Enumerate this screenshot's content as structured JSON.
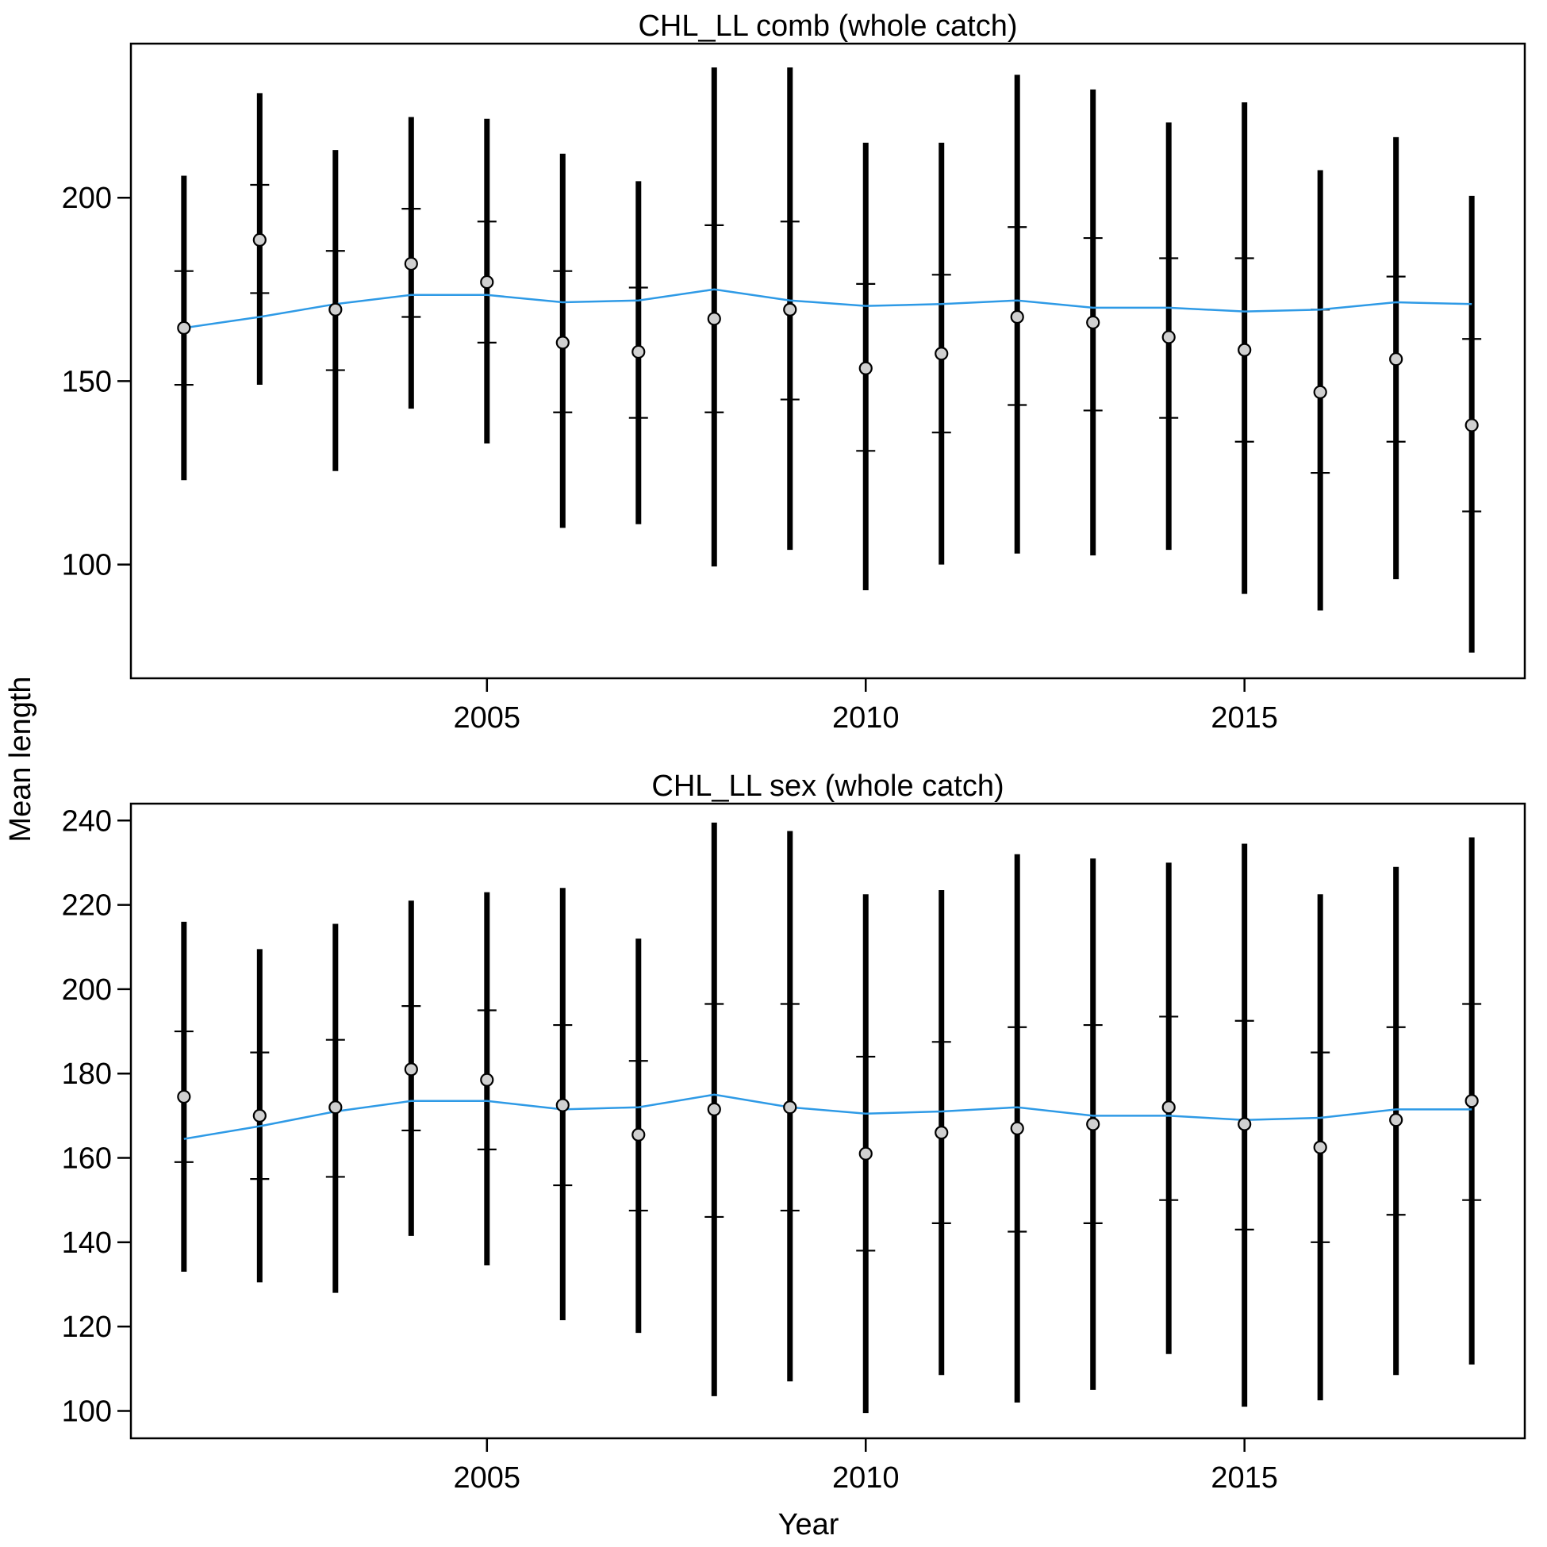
{
  "figure": {
    "xlabel": "Year",
    "ylabel": "Mean length"
  },
  "chart_data": [
    {
      "type": "scatter",
      "title": "CHL_LL comb (whole catch)",
      "xlabel": "Year",
      "ylabel": "Mean length",
      "xlim": [
        2000.3,
        2018.7
      ],
      "ylim": [
        69,
        242
      ],
      "xticks": [
        2005,
        2010,
        2015
      ],
      "yticks": [
        100,
        150,
        200
      ],
      "grid": false,
      "colors": {
        "line": "#2E9AE6",
        "point_fill": "#D0D0D0",
        "bar": "#000000"
      },
      "series": [
        {
          "x": [
            2001,
            2002,
            2003,
            2004,
            2005,
            2006,
            2007,
            2008,
            2009,
            2010,
            2011,
            2012,
            2013,
            2014,
            2015,
            2016,
            2017,
            2018
          ],
          "observed": [
            164.5,
            188.5,
            169.5,
            182,
            177,
            160.5,
            158,
            167,
            169.5,
            153.5,
            157.5,
            167.5,
            166,
            162,
            158.5,
            147,
            156,
            138
          ],
          "inner_lower": [
            149,
            174,
            153,
            167.5,
            160.5,
            141.5,
            140,
            141.5,
            145,
            131,
            136,
            143.5,
            142,
            140,
            133.5,
            125,
            133.5,
            114.5
          ],
          "inner_upper": [
            180,
            203.5,
            185.5,
            197,
            193.5,
            180,
            175.5,
            192.5,
            193.5,
            176.5,
            179,
            192,
            189,
            183.5,
            183.5,
            169.5,
            178.5,
            161.5
          ],
          "outer_lower": [
            123,
            149,
            125.5,
            142.5,
            133,
            110,
            111,
            99.5,
            104,
            93,
            100,
            103,
            102.5,
            104,
            92,
            87.5,
            96,
            76
          ],
          "outer_upper": [
            206,
            228.5,
            213,
            222,
            221.5,
            212,
            204.5,
            235.5,
            235.5,
            215,
            215,
            233.5,
            229.5,
            220.5,
            226,
            207.5,
            216.5,
            200.5
          ]
        },
        {
          "x": [
            2001,
            2002,
            2003,
            2004,
            2005,
            2006,
            2007,
            2008,
            2009,
            2010,
            2011,
            2012,
            2013,
            2014,
            2015,
            2016,
            2017,
            2018
          ],
          "expected": [
            164.5,
            167.5,
            171,
            173.5,
            173.5,
            171.5,
            172,
            175,
            172,
            170.5,
            171,
            172,
            170,
            170,
            169,
            169.5,
            171.5,
            171
          ]
        }
      ]
    },
    {
      "type": "scatter",
      "title": "CHL_LL sex (whole catch)",
      "xlabel": "Year",
      "ylabel": "Mean length",
      "xlim": [
        2000.3,
        2018.7
      ],
      "ylim": [
        93.5,
        244
      ],
      "xticks": [
        2005,
        2010,
        2015
      ],
      "yticks": [
        100,
        120,
        140,
        160,
        180,
        200,
        220,
        240
      ],
      "grid": false,
      "colors": {
        "line": "#2E9AE6",
        "point_fill": "#D0D0D0",
        "bar": "#000000"
      },
      "series": [
        {
          "x": [
            2001,
            2002,
            2003,
            2004,
            2005,
            2006,
            2007,
            2008,
            2009,
            2010,
            2011,
            2012,
            2013,
            2014,
            2015,
            2016,
            2017,
            2018
          ],
          "observed": [
            174.5,
            170,
            172,
            181,
            178.5,
            172.5,
            165.5,
            171.5,
            172,
            161,
            166,
            167,
            168,
            172,
            168,
            162.5,
            169,
            173.5
          ],
          "inner_lower": [
            159,
            155,
            155.5,
            166.5,
            162,
            153.5,
            147.5,
            146,
            147.5,
            138,
            144.5,
            142.5,
            144.5,
            150,
            143,
            140,
            146.5,
            150
          ],
          "inner_upper": [
            190,
            185,
            188,
            196,
            195,
            191.5,
            183,
            196.5,
            196.5,
            184,
            187.5,
            191,
            191.5,
            193.5,
            192.5,
            185,
            191,
            196.5
          ],
          "outer_lower": [
            133,
            130.5,
            128,
            141.5,
            134.5,
            121.5,
            118.5,
            103.5,
            107,
            99.5,
            108.5,
            102,
            105,
            113.5,
            101,
            102.5,
            108.5,
            111
          ],
          "outer_upper": [
            216,
            209.5,
            215.5,
            221,
            223,
            224,
            212,
            239.5,
            237.5,
            222.5,
            223.5,
            232,
            231,
            230,
            234.5,
            222.5,
            229,
            236
          ]
        },
        {
          "x": [
            2001,
            2002,
            2003,
            2004,
            2005,
            2006,
            2007,
            2008,
            2009,
            2010,
            2011,
            2012,
            2013,
            2014,
            2015,
            2016,
            2017,
            2018
          ],
          "expected": [
            164.5,
            167.5,
            171,
            173.5,
            173.5,
            171.5,
            172,
            175,
            172,
            170.5,
            171,
            172,
            170,
            170,
            169,
            169.5,
            171.5,
            171.5
          ]
        }
      ]
    }
  ]
}
